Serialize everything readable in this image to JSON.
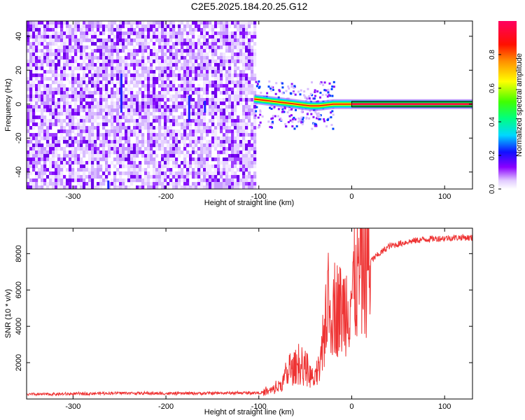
{
  "chart_data": [
    {
      "type": "heatmap",
      "title": "C2E5.2025.184.20.25.G12",
      "xlabel": "Height of straight line (km)",
      "ylabel": "Frequency (Hz)",
      "xlim": [
        -350,
        130
      ],
      "ylim": [
        -50,
        49
      ],
      "xticks": [
        -300,
        -200,
        -100,
        0,
        100
      ],
      "yticks": [
        -40,
        -20,
        0,
        20,
        40
      ],
      "noise_region": [
        -350,
        -105
      ],
      "signal_trace": [
        {
          "x": -105,
          "y": 3
        },
        {
          "x": -90,
          "y": 2
        },
        {
          "x": -75,
          "y": 1
        },
        {
          "x": -60,
          "y": 0
        },
        {
          "x": -45,
          "y": -1
        },
        {
          "x": -35,
          "y": -1
        },
        {
          "x": -20,
          "y": 0
        },
        {
          "x": 0,
          "y": 0
        },
        {
          "x": 130,
          "y": 0
        }
      ],
      "colorbar": {
        "label": "Normalized spectral amplitude",
        "range": [
          0.0,
          1.0
        ],
        "ticks": [
          "0.0",
          "0.2",
          "0.4",
          "0.6",
          "0.8"
        ],
        "colors": [
          "#ffffff",
          "#e0c8ff",
          "#8000ff",
          "#0000ff",
          "#00ffff",
          "#00ff00",
          "#ffff00",
          "#ff8000",
          "#ff0000",
          "#ff0080"
        ]
      },
      "grid": false,
      "legend": "none"
    },
    {
      "type": "line",
      "xlabel": "Height of straight line (km)",
      "ylabel": "SNR (10 * v/v)",
      "xlim": [
        -350,
        130
      ],
      "ylim": [
        0,
        9400
      ],
      "xticks": [
        -300,
        -200,
        -100,
        0,
        100
      ],
      "yticks": [
        2000,
        4000,
        6000,
        8000
      ],
      "color": "#ee3333",
      "series": [
        {
          "x": [
            -350,
            -300,
            -250,
            -200,
            -150,
            -100,
            -90,
            -80,
            -70,
            -60,
            -50,
            -45,
            -40,
            -35,
            -30,
            -28,
            -25,
            -20,
            -10,
            0,
            10,
            20,
            30,
            40,
            60,
            80,
            100,
            120,
            130
          ],
          "y": [
            250,
            280,
            330,
            300,
            320,
            340,
            400,
            600,
            1200,
            1800,
            1500,
            1300,
            1000,
            1400,
            3000,
            5200,
            4500,
            5200,
            4800,
            5800,
            7000,
            7600,
            8000,
            8400,
            8650,
            8800,
            8850,
            8900,
            8850
          ]
        }
      ],
      "grid": false,
      "legend": "none"
    }
  ]
}
